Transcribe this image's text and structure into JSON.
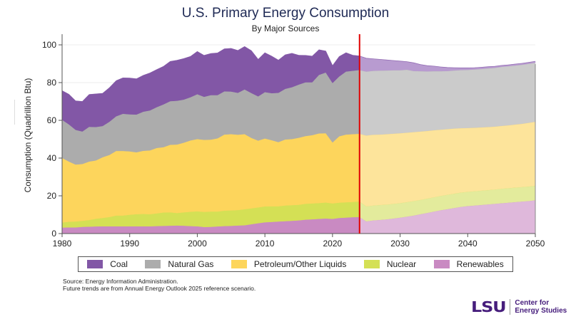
{
  "header": {
    "title": "U.S. Primary Energy Consumption",
    "subtitle": "By Major Sources"
  },
  "footer": {
    "source_line1": "Source: Energy Information Administration.",
    "source_line2": "Future trends are from Annual Energy Outlook 2025 reference scenario.",
    "logo_mark": "LSU",
    "logo_line1": "Center for",
    "logo_line2": "Energy Studies"
  },
  "chart_data": {
    "type": "area",
    "stacked": true,
    "title": "U.S. Primary Energy Consumption",
    "subtitle": "By Major Sources",
    "xlabel": "",
    "ylabel": "Consumption (Quadrillion Btu)",
    "xlim": [
      1980,
      2050
    ],
    "ylim": [
      0,
      105
    ],
    "xticks": [
      1980,
      1990,
      2000,
      2010,
      2020,
      2030,
      2040,
      2050
    ],
    "yticks": [
      0,
      20,
      40,
      60,
      80,
      100
    ],
    "grid": "horizontal",
    "legend_position": "bottom",
    "projection_start_year": 2024,
    "projection_divider_color": "#e00000",
    "stack_order_bottom_to_top": [
      "Renewables",
      "Nuclear",
      "Petroleum/Other Liquids",
      "Natural Gas",
      "Coal"
    ],
    "x": [
      1980,
      1981,
      1982,
      1983,
      1984,
      1985,
      1986,
      1987,
      1988,
      1989,
      1990,
      1991,
      1992,
      1993,
      1994,
      1995,
      1996,
      1997,
      1998,
      1999,
      2000,
      2001,
      2002,
      2003,
      2004,
      2005,
      2006,
      2007,
      2008,
      2009,
      2010,
      2011,
      2012,
      2013,
      2014,
      2015,
      2016,
      2017,
      2018,
      2019,
      2020,
      2021,
      2022,
      2023,
      2024,
      2025,
      2026,
      2027,
      2028,
      2029,
      2030,
      2031,
      2032,
      2033,
      2034,
      2035,
      2036,
      2037,
      2038,
      2039,
      2040,
      2041,
      2042,
      2043,
      2044,
      2045,
      2046,
      2047,
      2048,
      2049,
      2050
    ],
    "series": [
      {
        "name": "Renewables",
        "color": "#c98ac2",
        "projection_color": "#dfb8db",
        "values": [
          3.2,
          3.3,
          3.3,
          3.6,
          3.7,
          3.8,
          3.9,
          3.9,
          3.9,
          3.9,
          3.9,
          3.9,
          3.9,
          3.9,
          4.0,
          4.1,
          4.2,
          4.3,
          4.2,
          4.0,
          3.9,
          3.5,
          3.6,
          3.8,
          4.0,
          4.1,
          4.3,
          4.4,
          5.0,
          5.5,
          6.0,
          6.2,
          6.4,
          6.6,
          6.8,
          7.0,
          7.4,
          7.6,
          7.8,
          8.0,
          7.8,
          8.3,
          8.5,
          8.7,
          8.8,
          6.5,
          7.0,
          7.3,
          7.6,
          8.0,
          8.5,
          9.0,
          9.6,
          10.3,
          11.0,
          11.7,
          12.4,
          13.0,
          13.6,
          14.2,
          14.6,
          14.9,
          15.2,
          15.5,
          15.8,
          16.1,
          16.4,
          16.7,
          17.0,
          17.3,
          17.7
        ]
      },
      {
        "name": "Nuclear",
        "color": "#d4e055",
        "projection_color": "#e3eb9c",
        "values": [
          2.7,
          3.0,
          3.1,
          3.2,
          3.5,
          4.1,
          4.4,
          4.9,
          5.7,
          5.7,
          6.1,
          6.4,
          6.5,
          6.4,
          6.7,
          7.1,
          7.1,
          6.6,
          7.1,
          7.6,
          7.9,
          8.0,
          8.1,
          7.9,
          8.2,
          8.2,
          8.2,
          8.5,
          8.4,
          8.4,
          8.4,
          8.3,
          8.1,
          8.3,
          8.3,
          8.3,
          8.4,
          8.4,
          8.4,
          8.5,
          8.2,
          8.1,
          8.1,
          8.1,
          8.2,
          8.0,
          7.9,
          7.9,
          7.8,
          7.8,
          7.7,
          7.7,
          7.7,
          7.6,
          7.6,
          7.6,
          7.6,
          7.6,
          7.6,
          7.6,
          7.6,
          7.6,
          7.6,
          7.6,
          7.6,
          7.7,
          7.7,
          7.7,
          7.7,
          7.7,
          7.7
        ]
      },
      {
        "name": "Petroleum/Other Liquids",
        "color": "#fdd55c",
        "projection_color": "#fde49b",
        "values": [
          34.2,
          31.9,
          30.2,
          30.1,
          31.0,
          30.9,
          32.2,
          32.9,
          34.2,
          34.2,
          33.6,
          32.8,
          33.5,
          33.8,
          34.7,
          34.6,
          35.8,
          36.3,
          36.9,
          37.8,
          38.3,
          38.2,
          38.1,
          38.8,
          40.3,
          40.4,
          39.9,
          39.8,
          37.3,
          35.4,
          36.0,
          35.0,
          34.0,
          35.0,
          35.0,
          35.5,
          35.9,
          36.2,
          36.9,
          36.7,
          32.3,
          35.2,
          35.9,
          35.9,
          35.9,
          37.5,
          37.5,
          37.3,
          37.3,
          37.2,
          37.0,
          36.8,
          36.5,
          36.2,
          35.8,
          35.5,
          35.1,
          34.8,
          34.5,
          34.1,
          33.8,
          33.6,
          33.5,
          33.4,
          33.3,
          33.3,
          33.3,
          33.4,
          33.5,
          33.7,
          33.9
        ]
      },
      {
        "name": "Natural Gas",
        "color": "#acacac",
        "projection_color": "#cbcbcb",
        "values": [
          20.2,
          19.7,
          18.4,
          17.2,
          18.4,
          17.7,
          16.5,
          17.6,
          18.4,
          19.7,
          19.6,
          20.0,
          20.7,
          21.2,
          21.6,
          22.7,
          23.1,
          23.2,
          22.8,
          22.9,
          23.8,
          22.8,
          23.6,
          22.9,
          22.9,
          22.6,
          22.2,
          23.7,
          23.8,
          23.4,
          24.6,
          24.9,
          26.1,
          26.8,
          27.5,
          28.2,
          28.5,
          28.0,
          31.0,
          32.2,
          31.5,
          31.7,
          33.4,
          33.6,
          33.8,
          33.9,
          33.9,
          33.9,
          33.8,
          33.6,
          33.4,
          33.4,
          32.4,
          32.0,
          31.6,
          31.3,
          31.0,
          30.8,
          30.8,
          30.8,
          30.8,
          30.9,
          31.0,
          31.1,
          31.2,
          31.3,
          31.3,
          31.3,
          31.3,
          31.3,
          31.3
        ]
      },
      {
        "name": "Coal",
        "color": "#8257a6",
        "projection_color": "#b89bd0",
        "values": [
          15.4,
          15.9,
          15.3,
          15.9,
          17.1,
          17.5,
          17.3,
          18.0,
          18.8,
          19.0,
          19.2,
          18.9,
          19.2,
          19.8,
          19.9,
          20.1,
          21.0,
          21.4,
          21.7,
          21.6,
          22.6,
          21.9,
          22.0,
          22.3,
          22.5,
          22.8,
          22.4,
          22.7,
          22.4,
          19.6,
          20.8,
          19.6,
          17.3,
          18.0,
          17.9,
          15.5,
          14.2,
          13.8,
          13.3,
          11.3,
          9.2,
          10.5,
          9.9,
          8.2,
          7.4,
          7.0,
          6.3,
          5.9,
          5.5,
          5.1,
          4.8,
          4.2,
          4.3,
          3.5,
          3.0,
          2.6,
          2.2,
          1.8,
          1.4,
          1.1,
          1.0,
          0.9,
          0.8,
          0.8,
          0.7,
          0.7,
          0.7,
          0.7,
          0.7,
          0.7,
          0.7
        ]
      }
    ]
  }
}
